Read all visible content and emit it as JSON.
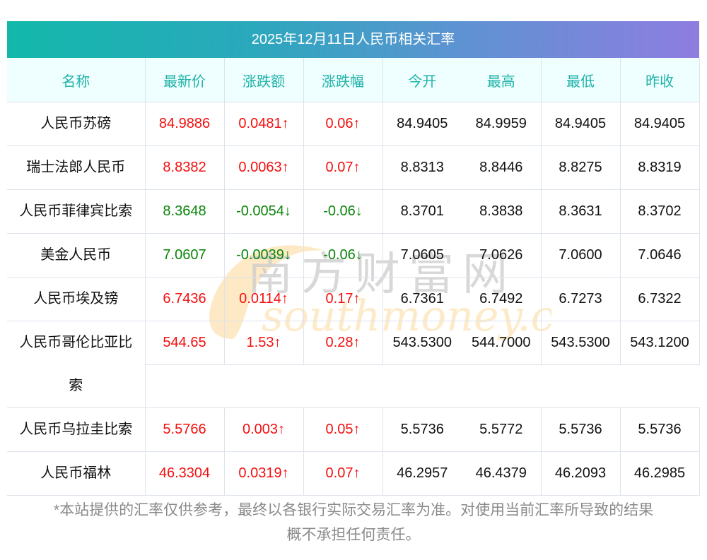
{
  "title": "2025年12月11日人民币相关汇率",
  "columns": [
    "名称",
    "最新价",
    "涨跌额",
    "涨跌幅",
    "今开",
    "最高",
    "最低",
    "昨收"
  ],
  "rows": [
    {
      "name": "人民币苏磅",
      "latest": "84.9886",
      "change": "0.0481↑",
      "change_pct": "0.06↑",
      "open": "84.9405",
      "high": "84.9959",
      "low": "84.9405",
      "prev_close": "84.9405",
      "direction": "up"
    },
    {
      "name": "瑞士法郎人民币",
      "latest": "8.8382",
      "change": "0.0063↑",
      "change_pct": "0.07↑",
      "open": "8.8313",
      "high": "8.8446",
      "low": "8.8275",
      "prev_close": "8.8319",
      "direction": "up"
    },
    {
      "name": "人民币菲律宾比索",
      "latest": "8.3648",
      "change": "-0.0054↓",
      "change_pct": "-0.06↓",
      "open": "8.3701",
      "high": "8.3838",
      "low": "8.3631",
      "prev_close": "8.3702",
      "direction": "down"
    },
    {
      "name": "美金人民币",
      "latest": "7.0607",
      "change": "-0.0039↓",
      "change_pct": "-0.06↓",
      "open": "7.0605",
      "high": "7.0626",
      "low": "7.0600",
      "prev_close": "7.0646",
      "direction": "down"
    },
    {
      "name": "人民币埃及镑",
      "latest": "6.7436",
      "change": "0.0114↑",
      "change_pct": "0.17↑",
      "open": "6.7361",
      "high": "6.7492",
      "low": "6.7273",
      "prev_close": "6.7322",
      "direction": "up"
    },
    {
      "name": "人民币哥伦比亚比索",
      "latest": "544.65",
      "change": "1.53↑",
      "change_pct": "0.28↑",
      "open": "543.5300",
      "high": "544.7000",
      "low": "543.5300",
      "prev_close": "543.1200",
      "direction": "up"
    },
    {
      "name": "人民币乌拉圭比索",
      "latest": "5.5766",
      "change": "0.003↑",
      "change_pct": "0.05↑",
      "open": "5.5736",
      "high": "5.5772",
      "low": "5.5736",
      "prev_close": "5.5736",
      "direction": "up"
    },
    {
      "name": "人民币福林",
      "latest": "46.3304",
      "change": "0.0319↑",
      "change_pct": "0.07↑",
      "open": "46.2957",
      "high": "46.4379",
      "low": "46.2093",
      "prev_close": "46.2985",
      "direction": "up"
    }
  ],
  "colombia_name_parts": [
    "人民币哥伦比亚比",
    "索"
  ],
  "watermark": {
    "cn": "南方财富网",
    "en": "southmoney.com"
  },
  "colors": {
    "up": "#f40f0f",
    "down": "#0a850a",
    "header_text": "#1fb3a8",
    "title_gradient_start": "#13b8ab",
    "title_gradient_end": "#8e7de0"
  },
  "footer": {
    "line1": "*本站提供的汇率仅供参考，最终以各银行实际交易汇率为准。对使用当前汇率所导致的结果",
    "line2": "概不承担任何责任。"
  }
}
